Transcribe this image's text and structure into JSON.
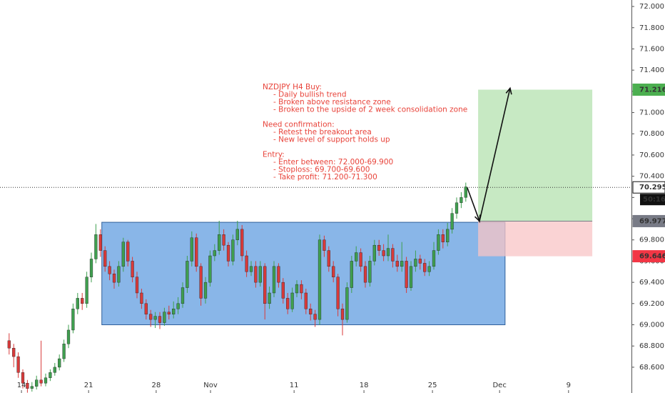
{
  "chart_data": {
    "type": "candlestick",
    "up_color": "#3f9f4f",
    "down_color": "#d93a3a",
    "xlim": [
      0,
      138.28
    ],
    "ylim": [
      68.357,
      72.061
    ],
    "yticks": [
      {
        "value": 68.6,
        "label": "68.600"
      },
      {
        "value": 68.8,
        "label": "68.800"
      },
      {
        "value": 69,
        "label": "69.000"
      },
      {
        "value": 69.2,
        "label": "69.200"
      },
      {
        "value": 69.4,
        "label": "69.400"
      },
      {
        "value": 69.6,
        "label": "69.600"
      },
      {
        "value": 69.8,
        "label": "69.800"
      },
      {
        "value": 70,
        "label": "70.000"
      },
      {
        "value": 70.2,
        "label": "70.200"
      },
      {
        "value": 70.4,
        "label": "70.400"
      },
      {
        "value": 70.6,
        "label": "70.600"
      },
      {
        "value": 70.8,
        "label": "70.800"
      },
      {
        "value": 71,
        "label": "71.000"
      },
      {
        "value": 71.2,
        "label": "71.200"
      },
      {
        "value": 71.4,
        "label": "71.400"
      },
      {
        "value": 71.6,
        "label": "71.600"
      },
      {
        "value": 71.8,
        "label": "71.800"
      },
      {
        "value": 72,
        "label": "72.000"
      }
    ],
    "xticks": [
      {
        "value": 4.7,
        "label": "14"
      },
      {
        "value": 19.4,
        "label": "21"
      },
      {
        "value": 34.2,
        "label": "28"
      },
      {
        "value": 46.1,
        "label": "Nov"
      },
      {
        "value": 64.4,
        "label": "11"
      },
      {
        "value": 79.7,
        "label": "18"
      },
      {
        "value": 94.7,
        "label": "25"
      },
      {
        "value": 109.4,
        "label": "Dec"
      },
      {
        "value": 124.5,
        "label": "9"
      }
    ],
    "x": [
      2,
      3,
      4,
      5,
      6,
      7,
      8,
      9,
      10,
      11,
      12,
      13,
      14,
      15,
      16,
      17,
      18,
      19,
      20,
      21,
      22,
      23,
      24,
      25,
      26,
      27,
      28,
      29,
      30,
      31,
      32,
      33,
      34,
      35,
      36,
      37,
      38,
      39,
      40,
      41,
      42,
      43,
      44,
      45,
      46,
      47,
      48,
      49,
      50,
      51,
      52,
      53,
      54,
      55,
      56,
      57,
      58,
      59,
      60,
      61,
      62,
      63,
      64,
      65,
      66,
      67,
      68,
      69,
      70,
      71,
      72,
      73,
      74,
      75,
      76,
      77,
      78,
      79,
      80,
      81,
      82,
      83,
      84,
      85,
      86,
      87,
      88,
      89,
      90,
      91,
      92,
      93,
      94,
      95,
      96,
      97,
      98,
      99,
      100,
      101,
      102
    ],
    "open": [
      68.85,
      68.78,
      68.7,
      68.55,
      68.45,
      68.4,
      68.42,
      68.48,
      68.45,
      68.5,
      68.55,
      68.6,
      68.68,
      68.82,
      68.95,
      69.15,
      69.25,
      69.2,
      69.45,
      69.62,
      69.85,
      69.7,
      69.55,
      69.48,
      69.4,
      69.55,
      69.78,
      69.6,
      69.45,
      69.3,
      69.2,
      69.1,
      69.05,
      69.08,
      69.02,
      69.12,
      69.1,
      69.15,
      69.2,
      69.35,
      69.6,
      69.82,
      69.55,
      69.25,
      69.4,
      69.65,
      69.7,
      69.85,
      69.75,
      69.6,
      69.8,
      69.9,
      69.65,
      69.5,
      69.55,
      69.4,
      69.55,
      69.2,
      69.3,
      69.55,
      69.4,
      69.25,
      69.15,
      69.3,
      69.38,
      69.3,
      69.15,
      69.1,
      69.05,
      69.8,
      69.7,
      69.55,
      69.45,
      69.15,
      69.05,
      69.35,
      69.6,
      69.68,
      69.55,
      69.4,
      69.6,
      69.75,
      69.7,
      69.65,
      69.72,
      69.6,
      69.55,
      69.6,
      69.35,
      69.55,
      69.62,
      69.58,
      69.5,
      69.55,
      69.7,
      69.85,
      69.78,
      69.9,
      70.05,
      70.15,
      70.2
    ],
    "high": [
      68.92,
      68.82,
      68.74,
      68.58,
      68.48,
      68.46,
      68.52,
      68.85,
      68.54,
      68.58,
      68.64,
      68.72,
      68.86,
      69.0,
      69.2,
      69.3,
      69.3,
      69.5,
      69.68,
      69.95,
      69.9,
      69.74,
      69.6,
      69.52,
      69.6,
      69.82,
      69.8,
      69.64,
      69.5,
      69.34,
      69.24,
      69.14,
      69.12,
      69.12,
      69.16,
      69.18,
      69.22,
      69.26,
      69.4,
      69.65,
      69.88,
      69.86,
      69.58,
      69.45,
      69.7,
      69.76,
      69.98,
      69.9,
      69.78,
      69.85,
      69.98,
      69.94,
      69.7,
      69.6,
      69.6,
      69.6,
      69.58,
      69.36,
      69.6,
      69.58,
      69.44,
      69.3,
      69.35,
      69.42,
      69.42,
      69.34,
      69.2,
      69.14,
      69.85,
      69.84,
      69.74,
      69.6,
      69.48,
      69.2,
      69.4,
      69.65,
      69.74,
      69.72,
      69.6,
      69.65,
      69.8,
      69.8,
      69.76,
      69.85,
      69.76,
      69.66,
      69.78,
      69.64,
      69.6,
      69.7,
      69.66,
      69.62,
      69.6,
      69.78,
      69.9,
      69.9,
      69.96,
      70.1,
      70.2,
      70.25,
      70.34
    ],
    "low": [
      68.72,
      68.6,
      68.5,
      68.4,
      68.36,
      68.37,
      68.39,
      68.42,
      68.42,
      68.47,
      68.52,
      68.57,
      68.65,
      68.78,
      68.92,
      69.1,
      69.14,
      69.16,
      69.4,
      69.58,
      69.64,
      69.5,
      69.42,
      69.34,
      69.36,
      69.5,
      69.55,
      69.4,
      69.25,
      69.15,
      69.05,
      68.98,
      68.97,
      68.96,
      68.99,
      69.05,
      69.06,
      69.1,
      69.16,
      69.3,
      69.55,
      69.5,
      69.18,
      69.2,
      69.36,
      69.6,
      69.66,
      69.7,
      69.55,
      69.56,
      69.75,
      69.6,
      69.45,
      69.46,
      69.35,
      69.36,
      69.05,
      69.15,
      69.26,
      69.35,
      69.2,
      69.1,
      69.12,
      69.26,
      69.24,
      69.1,
      69.04,
      68.98,
      69.0,
      69.64,
      69.5,
      69.4,
      69.08,
      68.9,
      69.02,
      69.3,
      69.55,
      69.5,
      69.35,
      69.36,
      69.56,
      69.65,
      69.6,
      69.6,
      69.54,
      69.5,
      69.5,
      69.3,
      69.32,
      69.5,
      69.52,
      69.46,
      69.46,
      69.52,
      69.66,
      69.72,
      69.74,
      69.86,
      70.0,
      70.1,
      70.16
    ],
    "close": [
      68.78,
      68.7,
      68.55,
      68.45,
      68.4,
      68.42,
      68.48,
      68.45,
      68.5,
      68.55,
      68.6,
      68.68,
      68.82,
      68.95,
      69.15,
      69.25,
      69.2,
      69.45,
      69.62,
      69.85,
      69.7,
      69.55,
      69.48,
      69.4,
      69.55,
      69.78,
      69.6,
      69.45,
      69.3,
      69.2,
      69.1,
      69.05,
      69.08,
      69.02,
      69.12,
      69.1,
      69.15,
      69.2,
      69.35,
      69.6,
      69.82,
      69.55,
      69.25,
      69.4,
      69.65,
      69.7,
      69.85,
      69.75,
      69.6,
      69.8,
      69.9,
      69.65,
      69.5,
      69.55,
      69.4,
      69.55,
      69.2,
      69.3,
      69.55,
      69.4,
      69.25,
      69.15,
      69.3,
      69.38,
      69.3,
      69.15,
      69.1,
      69.05,
      69.8,
      69.7,
      69.55,
      69.45,
      69.15,
      69.05,
      69.35,
      69.6,
      69.68,
      69.55,
      69.4,
      69.6,
      69.75,
      69.7,
      69.65,
      69.72,
      69.6,
      69.55,
      69.6,
      69.35,
      69.55,
      69.62,
      69.58,
      69.5,
      69.55,
      69.7,
      69.85,
      69.78,
      69.9,
      70.05,
      70.15,
      70.2,
      70.3
    ],
    "zone": {
      "xlim": [
        22.3,
        110.6
      ],
      "ylim": [
        69.0,
        69.966
      ],
      "color": "#4a8fdc"
    },
    "position": {
      "xlim": [
        104.7,
        129.7
      ],
      "entry": 69.977,
      "target": 71.216,
      "stop": 69.646,
      "entry_color": "#787b86",
      "target_color": "#4caf50",
      "stop_color": "#f23645",
      "profit_fill": "#b9e4b4",
      "loss_fill": "#f8c4c6"
    },
    "arrow": {
      "x": [
        102.3,
        105,
        111.7
      ],
      "y": [
        70.295,
        69.977,
        71.23
      ]
    },
    "last_price": 70.295,
    "countdown": "50:16",
    "annotation": [
      {
        "heading": "NZDJPY H4 Buy:",
        "items": [
          "- Daily bullish trend",
          "- Broken above resistance zone",
          "- Broken to the upside of 2 week consolidation zone"
        ]
      },
      {
        "heading": "Need confirmation:",
        "items": [
          "- Retest the breakout area",
          "- New level of support holds up"
        ]
      },
      {
        "heading": "Entry:",
        "items": [
          "- Enter between: 72.000-69.900",
          "- Stoploss: 69.700-69.600",
          "- Take profit: 71.200-71.300"
        ]
      }
    ]
  }
}
